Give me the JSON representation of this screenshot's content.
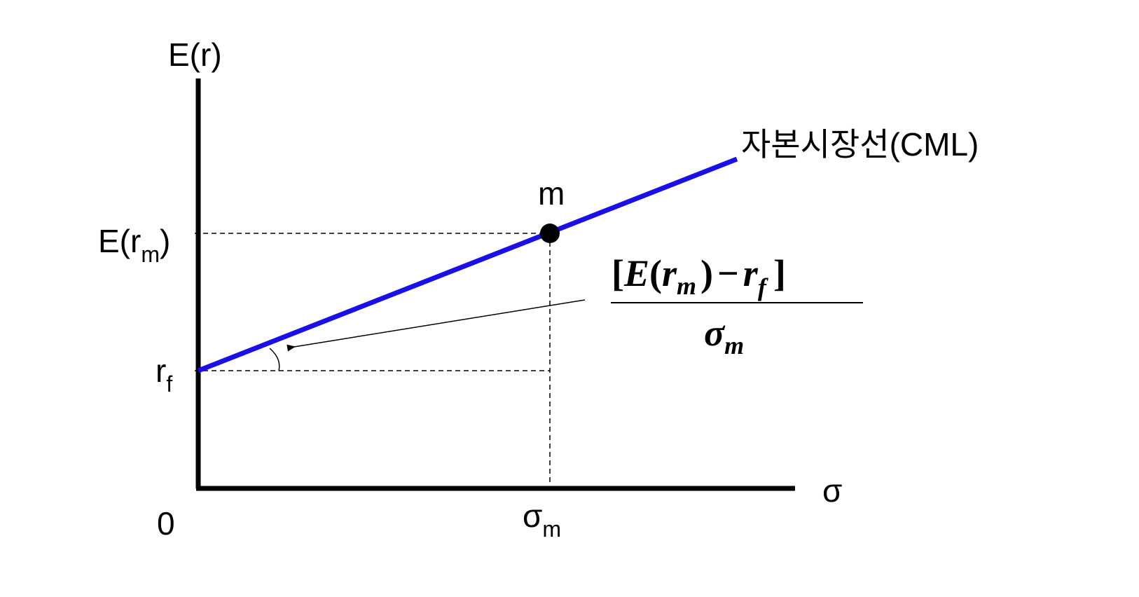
{
  "diagram": {
    "y_axis_label": "E(r)",
    "x_axis_label": "σ",
    "origin_label": "0",
    "cml_label": "자본시장선(CML)",
    "market_point_label": "m",
    "y_tick_market": {
      "base": "E(r",
      "sub": "m",
      "close": ")"
    },
    "y_tick_riskfree": {
      "base": "r",
      "sub": "f"
    },
    "x_tick_market": {
      "base": "σ",
      "sub": "m"
    },
    "slope_formula": {
      "numerator": {
        "open_bracket": "[",
        "E": "E",
        "open_paren": "(",
        "r": "r",
        "sub_m": "m",
        "close_paren": ")",
        "minus": "−",
        "rf": "r",
        "sub_f": "f",
        "close_bracket": "]"
      },
      "denominator": {
        "sigma": "σ",
        "sub_m": "m"
      }
    },
    "colors": {
      "cml": "#1a10e6",
      "axes": "#000000",
      "guides": "#000000"
    }
  }
}
